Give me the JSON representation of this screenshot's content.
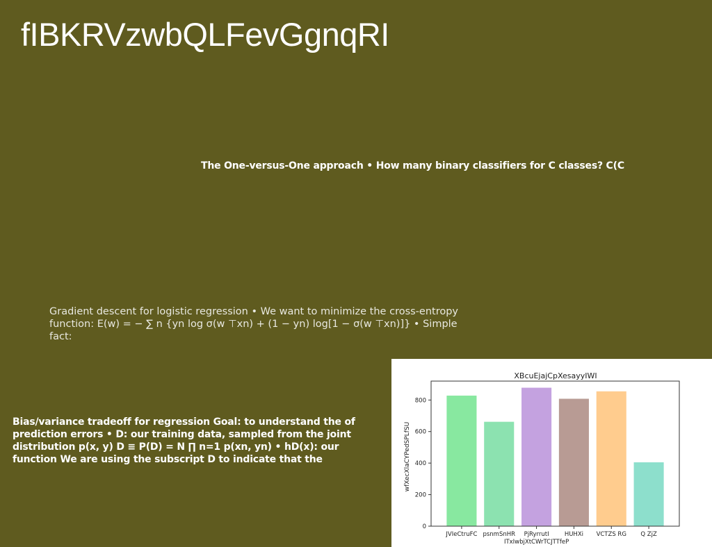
{
  "page": {
    "title": "fIBKRVzwbQLFevGgnqRI",
    "text_blocks": {
      "one_vs_one": "The One-versus-One approach • How many binary classifiers for C classes? C(C",
      "gradient": "Gradient descent for logistic regression • We want to minimize the cross-entropy function: E(w) = − ∑ n {yn log σ(w ⊤xn) + (1 − yn) log[1 − σ(w ⊤xn)]} • Simple fact:",
      "bias_variance": "Bias/variance tradeoff for regression Goal: to understand the of prediction errors • D: our training data, sampled from the joint distribution p(x, y) D ≡ P(D) = N ∏ n=1 p(xn, yn) • hD(x): our function We are using the subscript D to indicate that the"
    }
  },
  "chart_data": {
    "type": "bar",
    "title": "XBcuEjajCpXesayyIWI",
    "xlabel": "",
    "ylabel": "wfXecXlaCYPedSPLfSU",
    "categories": [
      "JVIeCtruFC",
      "psnmSnHR",
      "PjRyrrutI\nITxIwbjXtCWrTCJTTfeP",
      "HUHXi",
      "VCTZS RG",
      "Q ZjZ"
    ],
    "values": [
      828,
      662,
      878,
      808,
      855,
      405
    ],
    "colors": [
      "#88e8a0",
      "#8ce2b0",
      "#c4a2e0",
      "#b89b94",
      "#ffcc8e",
      "#8ddfcc"
    ],
    "ylim": [
      0,
      920
    ],
    "yticks": [
      0,
      200,
      400,
      600,
      800
    ],
    "grid": false,
    "legend": "none"
  }
}
